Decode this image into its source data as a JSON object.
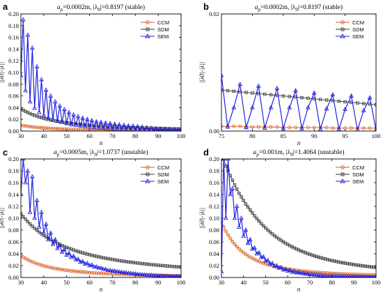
{
  "chart_data": [
    {
      "type": "line",
      "panel_label": "a",
      "title": "a_p=0.0002m, |λ_0|=0.8197 (stable)",
      "title_parts": {
        "a": "a",
        "sub": "p",
        "mid": "=0.0002m, |λ",
        "sub2": "0",
        "end": "|=0.8197  (stable)"
      },
      "xlabel": "n",
      "ylabel": "||λ0|-|λ||",
      "xlim": [
        30,
        100
      ],
      "ylim": [
        0,
        0.2
      ],
      "xticks": [
        "30",
        "40",
        "50",
        "60",
        "70",
        "80",
        "90",
        "100"
      ],
      "yticks": [
        "0.00",
        "0.02",
        "0.04",
        "0.06",
        "0.08",
        "0.10",
        "0.12",
        "0.14",
        "0.16",
        "0.18",
        "0.20"
      ],
      "legend": [
        "CCM",
        "SDM",
        "SEM"
      ],
      "legend_position": "top-right",
      "series": [
        {
          "name": "CCM",
          "marker": "circle",
          "color": "#d85a1a",
          "x_start": 30,
          "x_end": 100,
          "values": [
            0.01,
            0.0093,
            0.0087,
            0.0081,
            0.0076,
            0.0071,
            0.0067,
            0.0063,
            0.0059,
            0.0056,
            0.0053,
            0.005,
            0.0047,
            0.0045,
            0.0042,
            0.004,
            0.0038,
            0.0036,
            0.0035,
            0.0033,
            0.0031,
            0.003,
            0.0029,
            0.0027,
            0.0026,
            0.0025,
            0.0024,
            0.0023,
            0.0022,
            0.0021,
            0.002,
            0.0019,
            0.0019,
            0.0018,
            0.0017,
            0.0016,
            0.0016,
            0.0015,
            0.0015,
            0.0014,
            0.0014,
            0.0013,
            0.0013,
            0.0012,
            0.0012,
            0.0011,
            0.0011,
            0.0011,
            0.001,
            0.001,
            0.001,
            0.0009,
            0.0009,
            0.0009,
            0.0008,
            0.0008,
            0.0008,
            0.0008,
            0.0007,
            0.0007,
            0.0007,
            0.0007,
            0.0007,
            0.0006,
            0.0006,
            0.0006,
            0.0006,
            0.0006,
            0.0006,
            0.0005,
            0.0005
          ]
        },
        {
          "name": "SDM",
          "marker": "square",
          "color": "#333333",
          "x_start": 30,
          "x_end": 100,
          "values": [
            0.038,
            0.0357,
            0.0336,
            0.0317,
            0.0299,
            0.0283,
            0.0268,
            0.0255,
            0.0242,
            0.023,
            0.0219,
            0.0208,
            0.0199,
            0.019,
            0.0181,
            0.0173,
            0.0166,
            0.0159,
            0.0153,
            0.0147,
            0.0141,
            0.0136,
            0.0131,
            0.0126,
            0.0121,
            0.0117,
            0.0113,
            0.0109,
            0.0106,
            0.0102,
            0.0099,
            0.0096,
            0.0093,
            0.009,
            0.0087,
            0.0085,
            0.0082,
            0.008,
            0.0078,
            0.0076,
            0.0074,
            0.0072,
            0.007,
            0.0068,
            0.0066,
            0.0065,
            0.0063,
            0.0061,
            0.006,
            0.0058,
            0.0057,
            0.0056,
            0.0054,
            0.0053,
            0.0052,
            0.0051,
            0.005,
            0.0049,
            0.0048,
            0.0047,
            0.0046,
            0.0045,
            0.0044,
            0.0043,
            0.0042,
            0.0041,
            0.004,
            0.004,
            0.0039,
            0.0038,
            0.0037
          ]
        },
        {
          "name": "SEM",
          "marker": "triangle",
          "color": "#2020e0",
          "x_start": 30,
          "x_end": 100,
          "values": [
            0.095,
            0.19,
            0.069,
            0.164,
            0.05,
            0.142,
            0.039,
            0.11,
            0.032,
            0.088,
            0.027,
            0.07,
            0.023,
            0.06,
            0.02,
            0.05,
            0.017,
            0.043,
            0.015,
            0.037,
            0.013,
            0.032,
            0.011,
            0.028,
            0.01,
            0.025,
            0.009,
            0.022,
            0.008,
            0.02,
            0.007,
            0.018,
            0.006,
            0.016,
            0.0055,
            0.015,
            0.005,
            0.014,
            0.0045,
            0.013,
            0.004,
            0.012,
            0.0035,
            0.011,
            0.003,
            0.01,
            0.0025,
            0.009,
            0.002,
            0.0085,
            0.0018,
            0.008,
            0.0016,
            0.007,
            0.0014,
            0.006,
            0.0012,
            0.005,
            0.001,
            0.004,
            0.0008,
            0.0035,
            0.0006,
            0.003,
            0.0005,
            0.0025,
            0.0004,
            0.002,
            0.0003,
            0.0015,
            0.0003
          ]
        }
      ]
    },
    {
      "type": "line",
      "panel_label": "b",
      "title": "a_p=0.0002m, |λ_0|=0.8197 (stable)",
      "title_parts": {
        "a": "a",
        "sub": "p",
        "mid": "=0.0002m, |λ",
        "sub2": "0",
        "end": "|=0.8197  (stable)"
      },
      "xlabel": "n",
      "ylabel": "||λ0|-|λ||",
      "xlim": [
        75,
        100
      ],
      "ylim": [
        0,
        0.02
      ],
      "xticks": [
        "75",
        "80",
        "85",
        "90",
        "95",
        "100"
      ],
      "yticks": [
        "0.00",
        "0.02"
      ],
      "legend": [
        "CCM",
        "SDM",
        "SEM"
      ],
      "legend_position": "top-right",
      "series": [
        {
          "name": "CCM",
          "marker": "circle",
          "color": "#d85a1a",
          "x_start": 75,
          "x_end": 100,
          "values": [
            0.0008,
            0.0008,
            0.0008,
            0.0008,
            0.0007,
            0.0007,
            0.0007,
            0.0007,
            0.0007,
            0.0007,
            0.0006,
            0.0006,
            0.0006,
            0.0006,
            0.0006,
            0.0006,
            0.0006,
            0.0006,
            0.0005,
            0.0005,
            0.0005,
            0.0005,
            0.0005,
            0.0005,
            0.0005,
            0.0005
          ]
        },
        {
          "name": "SDM",
          "marker": "square",
          "color": "#333333",
          "x_start": 75,
          "x_end": 100,
          "values": [
            0.007,
            0.0069,
            0.0068,
            0.0067,
            0.0066,
            0.0065,
            0.0064,
            0.0063,
            0.0062,
            0.0061,
            0.006,
            0.0059,
            0.0058,
            0.0057,
            0.0056,
            0.0055,
            0.0054,
            0.0053,
            0.0052,
            0.0051,
            0.005,
            0.0049,
            0.0048,
            0.0047,
            0.0046,
            0.0045
          ]
        },
        {
          "name": "SEM",
          "marker": "triangle",
          "color": "#2020e0",
          "x_start": 75,
          "x_end": 100,
          "values": [
            0.0095,
            0.0007,
            0.004,
            0.008,
            0.0006,
            0.004,
            0.0077,
            0.0005,
            0.004,
            0.0073,
            0.0004,
            0.004,
            0.0069,
            0.0004,
            0.004,
            0.0065,
            0.0003,
            0.0038,
            0.0062,
            0.0003,
            0.0037,
            0.006,
            0.0002,
            0.0035,
            0.0057,
            0.0002
          ]
        }
      ]
    },
    {
      "type": "line",
      "panel_label": "c",
      "title": "a_p=0.0005m, |λ_0|=1.0737 (unstable)",
      "title_parts": {
        "a": "a",
        "sub": "p",
        "mid": "=0.0005m, |λ",
        "sub2": "0",
        "end": "|=1.0737  (unstable)"
      },
      "xlabel": "n",
      "ylabel": "||λ0|-|λ||",
      "xlim": [
        30,
        100
      ],
      "ylim": [
        0,
        0.2
      ],
      "xticks": [
        "30",
        "40",
        "50",
        "60",
        "70",
        "80",
        "90",
        "100"
      ],
      "yticks": [
        "0.00",
        "0.02",
        "0.04",
        "0.06",
        "0.08",
        "0.10",
        "0.12",
        "0.14",
        "0.16",
        "0.18",
        "0.20"
      ],
      "legend": [
        "CCM",
        "SDM",
        "SEM"
      ],
      "legend_position": "top-right",
      "series": [
        {
          "name": "CCM",
          "marker": "circle",
          "color": "#d85a1a",
          "x_start": 30,
          "x_end": 100,
          "values": [
            0.037,
            0.0344,
            0.032,
            0.0299,
            0.028,
            0.0263,
            0.0247,
            0.0233,
            0.0219,
            0.0207,
            0.0196,
            0.0186,
            0.0177,
            0.0168,
            0.016,
            0.0152,
            0.0145,
            0.0139,
            0.0133,
            0.0127,
            0.0121,
            0.0116,
            0.0112,
            0.0107,
            0.0103,
            0.0099,
            0.0095,
            0.0092,
            0.0088,
            0.0085,
            0.0082,
            0.008,
            0.0077,
            0.0074,
            0.0072,
            0.007,
            0.0068,
            0.0065,
            0.0063,
            0.0062,
            0.006,
            0.0058,
            0.0056,
            0.0055,
            0.0053,
            0.0052,
            0.005,
            0.0049,
            0.0048,
            0.0046,
            0.0045,
            0.0044,
            0.0043,
            0.0042,
            0.0041,
            0.004,
            0.0039,
            0.0038,
            0.0037,
            0.0036,
            0.0035,
            0.0034,
            0.0034,
            0.0033,
            0.0032,
            0.0031,
            0.0031,
            0.003,
            0.0029,
            0.0029,
            0.0028
          ]
        },
        {
          "name": "SDM",
          "marker": "square",
          "color": "#333333",
          "x_start": 30,
          "x_end": 100,
          "values": [
            0.108,
            0.103,
            0.0985,
            0.0942,
            0.0902,
            0.0865,
            0.083,
            0.0797,
            0.0766,
            0.0737,
            0.071,
            0.0684,
            0.066,
            0.0637,
            0.0615,
            0.0595,
            0.0575,
            0.0557,
            0.0539,
            0.0523,
            0.0507,
            0.0492,
            0.0478,
            0.0464,
            0.0451,
            0.0439,
            0.0427,
            0.0416,
            0.0405,
            0.0395,
            0.0385,
            0.0375,
            0.0366,
            0.0357,
            0.0349,
            0.0341,
            0.0333,
            0.0325,
            0.0318,
            0.0311,
            0.0304,
            0.0298,
            0.0291,
            0.0285,
            0.0279,
            0.0274,
            0.0268,
            0.0263,
            0.0258,
            0.0253,
            0.0248,
            0.0243,
            0.0239,
            0.0234,
            0.023,
            0.0226,
            0.0222,
            0.0218,
            0.0214,
            0.021,
            0.0207,
            0.0203,
            0.02,
            0.0196,
            0.0193,
            0.019,
            0.0187,
            0.0184,
            0.0181,
            0.0178,
            0.0175
          ]
        },
        {
          "name": "SEM",
          "marker": "triangle",
          "color": "#2020e0",
          "x_start": 30,
          "x_end": 100,
          "values": [
            0.14,
            0.2,
            0.16,
            0.18,
            0.11,
            0.17,
            0.1,
            0.13,
            0.085,
            0.11,
            0.075,
            0.09,
            0.064,
            0.075,
            0.056,
            0.064,
            0.049,
            0.054,
            0.043,
            0.047,
            0.038,
            0.041,
            0.034,
            0.036,
            0.03,
            0.031,
            0.026,
            0.027,
            0.023,
            0.024,
            0.02,
            0.021,
            0.018,
            0.018,
            0.016,
            0.016,
            0.014,
            0.014,
            0.012,
            0.012,
            0.011,
            0.011,
            0.01,
            0.0095,
            0.009,
            0.0085,
            0.008,
            0.0075,
            0.007,
            0.0065,
            0.006,
            0.0055,
            0.005,
            0.0048,
            0.0045,
            0.0042,
            0.004,
            0.0038,
            0.0035,
            0.0032,
            0.003,
            0.0028,
            0.0026,
            0.0024,
            0.0022,
            0.002,
            0.0019,
            0.0018,
            0.0017,
            0.0016,
            0.0015
          ]
        }
      ]
    },
    {
      "type": "line",
      "panel_label": "d",
      "title": "a_p=0.001m, |λ_0|=1.4064 (unstable)",
      "title_parts": {
        "a": "a",
        "sub": "p",
        "mid": "=0.001m, |λ",
        "sub2": "0",
        "end": "|=1.4064  (unstable)"
      },
      "xlabel": "n",
      "ylabel": "||λ0|-|λ||",
      "xlim": [
        30,
        100
      ],
      "ylim": [
        0,
        0.2
      ],
      "xticks": [
        "30",
        "40",
        "50",
        "60",
        "70",
        "80",
        "90",
        "100"
      ],
      "yticks": [
        "0.00",
        "0.02",
        "0.04",
        "0.06",
        "0.08",
        "0.10",
        "0.12",
        "0.14",
        "0.16",
        "0.18",
        "0.20"
      ],
      "legend": [
        "CCM",
        "SDM",
        "SEM"
      ],
      "legend_position": "top-right",
      "series": [
        {
          "name": "CCM",
          "marker": "circle",
          "color": "#d85a1a",
          "x_start": 30,
          "x_end": 100,
          "values": [
            0.094,
            0.0857,
            0.0783,
            0.0717,
            0.0659,
            0.0607,
            0.0561,
            0.0519,
            0.0482,
            0.0449,
            0.0418,
            0.0391,
            0.0366,
            0.0343,
            0.0323,
            0.0304,
            0.0286,
            0.027,
            0.0256,
            0.0242,
            0.0229,
            0.0218,
            0.0207,
            0.0197,
            0.0187,
            0.0179,
            0.017,
            0.0163,
            0.0156,
            0.0149,
            0.0143,
            0.0137,
            0.0131,
            0.0126,
            0.0121,
            0.0116,
            0.0112,
            0.0108,
            0.0104,
            0.01,
            0.0096,
            0.0093,
            0.009,
            0.0087,
            0.0084,
            0.0081,
            0.0078,
            0.0076,
            0.0073,
            0.0071,
            0.0069,
            0.0067,
            0.0065,
            0.0063,
            0.0061,
            0.0059,
            0.0058,
            0.0056,
            0.0054,
            0.0053,
            0.0052,
            0.005,
            0.0049,
            0.0048,
            0.0046,
            0.0045,
            0.0044,
            0.0043,
            0.0042,
            0.0041,
            0.004
          ]
        },
        {
          "name": "SDM",
          "marker": "square",
          "color": "#333333",
          "x_start": 30,
          "x_end": 100,
          "values": [
            0.2,
            0.2,
            0.188,
            0.18,
            0.172,
            0.164,
            0.156,
            0.149,
            0.142,
            0.136,
            0.13,
            0.124,
            0.119,
            0.114,
            0.109,
            0.104,
            0.0995,
            0.0952,
            0.0911,
            0.0872,
            0.0835,
            0.08,
            0.0767,
            0.0736,
            0.0706,
            0.0678,
            0.0651,
            0.0626,
            0.0602,
            0.0579,
            0.0557,
            0.0537,
            0.0517,
            0.0499,
            0.0481,
            0.0464,
            0.0448,
            0.0433,
            0.0418,
            0.0404,
            0.0391,
            0.0378,
            0.0366,
            0.0354,
            0.0343,
            0.0333,
            0.0322,
            0.0313,
            0.0303,
            0.0294,
            0.0286,
            0.0278,
            0.027,
            0.0262,
            0.0255,
            0.0248,
            0.0241,
            0.0235,
            0.0229,
            0.0223,
            0.0217,
            0.0212,
            0.0206,
            0.0201,
            0.0196,
            0.0192,
            0.0187,
            0.0183,
            0.0178,
            0.0174,
            0.017
          ]
        },
        {
          "name": "SEM",
          "marker": "triangle",
          "color": "#2020e0",
          "x_start": 30,
          "x_end": 100,
          "values": [
            0.01,
            0.2,
            0.1,
            0.2,
            0.14,
            0.15,
            0.1,
            0.12,
            0.085,
            0.1,
            0.07,
            0.08,
            0.058,
            0.064,
            0.048,
            0.05,
            0.04,
            0.042,
            0.034,
            0.035,
            0.028,
            0.029,
            0.023,
            0.024,
            0.019,
            0.02,
            0.016,
            0.017,
            0.013,
            0.014,
            0.011,
            0.012,
            0.009,
            0.01,
            0.008,
            0.0085,
            0.007,
            0.007,
            0.006,
            0.006,
            0.005,
            0.005,
            0.0042,
            0.0042,
            0.0036,
            0.0036,
            0.003,
            0.003,
            0.0026,
            0.0026,
            0.0022,
            0.0022,
            0.0019,
            0.0019,
            0.0016,
            0.0016,
            0.0014,
            0.0014,
            0.0012,
            0.0012,
            0.001,
            0.001,
            0.0009,
            0.0009,
            0.0008,
            0.0008,
            0.0007,
            0.0007,
            0.0006,
            0.0006,
            0.0005
          ]
        }
      ]
    }
  ]
}
